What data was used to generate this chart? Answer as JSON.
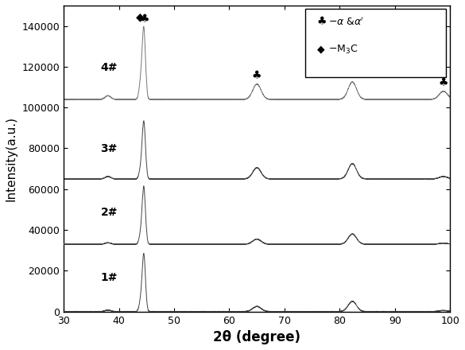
{
  "title": "",
  "xlabel": "2θ (degree)",
  "ylabel": "Intensity(a.u.)",
  "xlim": [
    30,
    100
  ],
  "ylim": [
    0,
    150000
  ],
  "yticks": [
    0,
    20000,
    40000,
    60000,
    80000,
    100000,
    120000,
    140000
  ],
  "xticks": [
    30,
    40,
    50,
    60,
    70,
    80,
    90,
    100
  ],
  "offsets": [
    0,
    33000,
    65000,
    104000
  ],
  "labels": [
    "1#",
    "2#",
    "3#",
    "4#"
  ],
  "background_color": "#ffffff",
  "line_color": "#000000"
}
